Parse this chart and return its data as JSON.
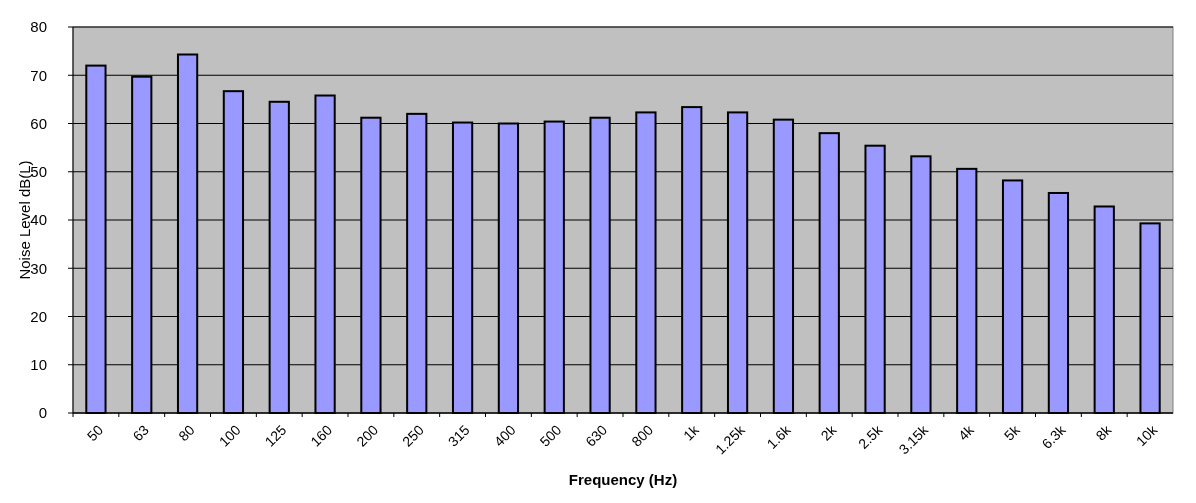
{
  "chart_data": {
    "type": "bar",
    "xlabel": "Frequency (Hz)",
    "ylabel": "Noise Level dB(L)",
    "categories": [
      "50",
      "63",
      "80",
      "100",
      "125",
      "160",
      "200",
      "250",
      "315",
      "400",
      "500",
      "630",
      "800",
      "1k",
      "1.25k",
      "1.6k",
      "2k",
      "2.5k",
      "3.15k",
      "4k",
      "5k",
      "6.3k",
      "8k",
      "10k"
    ],
    "values": [
      72,
      69.7,
      74.3,
      66.7,
      64.5,
      65.8,
      61.2,
      62,
      60.2,
      60,
      60.4,
      61.2,
      62.3,
      63.4,
      62.3,
      60.8,
      58,
      55.4,
      53.2,
      50.6,
      48.2,
      45.6,
      42.8,
      39.3
    ],
    "color": "#9999ff",
    "ylim": [
      0,
      80
    ],
    "yticks": [
      0,
      10,
      20,
      30,
      40,
      50,
      60,
      70,
      80
    ],
    "grid": "y"
  }
}
